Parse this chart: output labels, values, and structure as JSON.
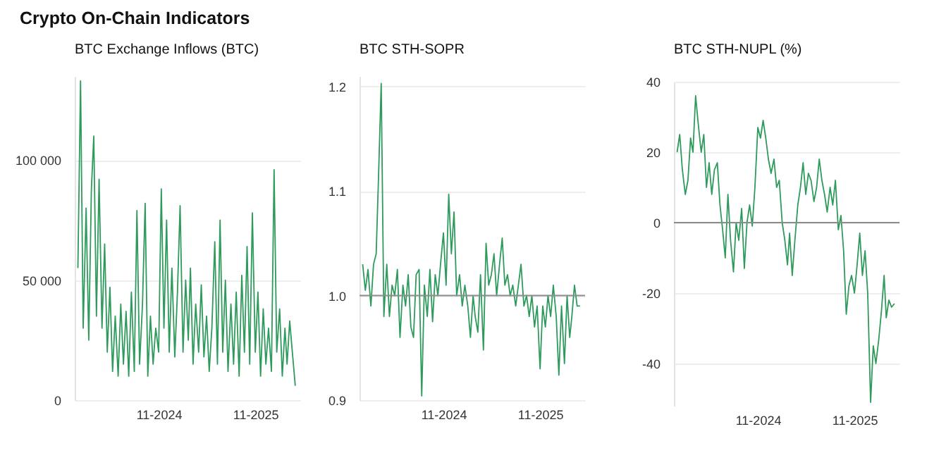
{
  "chart_data": [
    {
      "type": "other",
      "title": "Crypto On-Chain Indicators"
    },
    {
      "type": "line",
      "title": "BTC Exchange Inflows (BTC)",
      "grid": "y",
      "xlim": [
        "2023-12-20",
        "2026-04-20"
      ],
      "xticks": [
        {
          "value": "2024-11-01",
          "label": "11-2024"
        },
        {
          "value": "2025-11-01",
          "label": "11-2025"
        }
      ],
      "ylim": [
        0,
        135000
      ],
      "yticks": [
        {
          "value": 0,
          "label": "0"
        },
        {
          "value": 50000,
          "label": "50 000"
        },
        {
          "value": 100000,
          "label": "100 000"
        }
      ],
      "x": [
        "2024-01-01",
        "2024-01-11",
        "2024-01-21",
        "2024-02-01",
        "2024-02-11",
        "2024-02-21",
        "2024-03-01",
        "2024-03-11",
        "2024-03-21",
        "2024-04-01",
        "2024-04-11",
        "2024-04-21",
        "2024-05-01",
        "2024-05-11",
        "2024-05-21",
        "2024-06-01",
        "2024-06-11",
        "2024-06-21",
        "2024-07-01",
        "2024-07-11",
        "2024-07-21",
        "2024-08-01",
        "2024-08-11",
        "2024-08-21",
        "2024-09-01",
        "2024-09-11",
        "2024-09-21",
        "2024-10-01",
        "2024-10-11",
        "2024-10-21",
        "2024-11-01",
        "2024-11-11",
        "2024-11-21",
        "2024-12-01",
        "2024-12-11",
        "2024-12-21",
        "2025-01-01",
        "2025-01-11",
        "2025-01-21",
        "2025-02-01",
        "2025-02-11",
        "2025-02-21",
        "2025-03-01",
        "2025-03-11",
        "2025-03-21",
        "2025-04-01",
        "2025-04-11",
        "2025-04-21",
        "2025-05-01",
        "2025-05-11",
        "2025-05-21",
        "2025-06-01",
        "2025-06-11",
        "2025-06-21",
        "2025-07-01",
        "2025-07-11",
        "2025-07-21",
        "2025-08-01",
        "2025-08-11",
        "2025-08-21",
        "2025-09-01",
        "2025-09-11",
        "2025-09-21",
        "2025-10-01",
        "2025-10-11",
        "2025-10-21",
        "2025-11-01",
        "2025-11-11",
        "2025-11-21",
        "2025-12-01",
        "2025-12-11",
        "2025-12-21",
        "2026-01-01",
        "2026-01-11",
        "2026-01-21",
        "2026-02-01",
        "2026-02-11",
        "2026-02-21",
        "2026-03-01",
        "2026-03-11",
        "2026-03-21",
        "2026-04-01"
      ],
      "series": [
        {
          "color": "#2e9a5c",
          "values": [
            55000,
            133000,
            30000,
            80000,
            25000,
            88000,
            110000,
            35000,
            92000,
            30000,
            65000,
            20000,
            47000,
            12000,
            35000,
            10000,
            40000,
            15000,
            37000,
            10000,
            45000,
            12000,
            79000,
            15000,
            40000,
            82000,
            10000,
            35000,
            15000,
            30000,
            20000,
            88000,
            30000,
            75000,
            20000,
            55000,
            18000,
            45000,
            81000,
            20000,
            50000,
            25000,
            55000,
            15000,
            40000,
            20000,
            48000,
            18000,
            35000,
            12000,
            30000,
            66000,
            15000,
            75000,
            20000,
            50000,
            12000,
            40000,
            15000,
            45000,
            10000,
            52000,
            20000,
            64000,
            15000,
            78000,
            20000,
            45000,
            10000,
            38000,
            15000,
            30000,
            12000,
            96000,
            20000,
            38000,
            10000,
            30000,
            15000,
            33000,
            20000,
            6000
          ]
        }
      ]
    },
    {
      "type": "line",
      "title": "BTC STH-SOPR",
      "grid": "y",
      "xlim": [
        "2023-12-20",
        "2026-04-20"
      ],
      "xticks": [
        {
          "value": "2024-11-01",
          "label": "11-2024"
        },
        {
          "value": "2025-11-01",
          "label": "11-2025"
        }
      ],
      "ylim": [
        0.9,
        1.21
      ],
      "yticks": [
        {
          "value": 0.9,
          "label": "0.9"
        },
        {
          "value": 1,
          "label": "1.0"
        },
        {
          "value": 1.1,
          "label": "1.1"
        },
        {
          "value": 1.2,
          "label": "1.2"
        }
      ],
      "ref_lines": [
        {
          "axis": "y",
          "value": 1,
          "color": "#8c8c8c"
        }
      ],
      "x": [
        "2024-01-01",
        "2024-01-11",
        "2024-01-21",
        "2024-02-01",
        "2024-02-11",
        "2024-02-21",
        "2024-03-01",
        "2024-03-11",
        "2024-03-21",
        "2024-04-01",
        "2024-04-11",
        "2024-04-21",
        "2024-05-01",
        "2024-05-11",
        "2024-05-21",
        "2024-06-01",
        "2024-06-11",
        "2024-06-21",
        "2024-07-01",
        "2024-07-11",
        "2024-07-21",
        "2024-08-01",
        "2024-08-11",
        "2024-08-21",
        "2024-09-01",
        "2024-09-11",
        "2024-09-21",
        "2024-10-01",
        "2024-10-11",
        "2024-10-21",
        "2024-11-01",
        "2024-11-11",
        "2024-11-21",
        "2024-12-01",
        "2024-12-11",
        "2024-12-21",
        "2025-01-01",
        "2025-01-11",
        "2025-01-21",
        "2025-02-01",
        "2025-02-11",
        "2025-02-21",
        "2025-03-01",
        "2025-03-11",
        "2025-03-21",
        "2025-04-01",
        "2025-04-11",
        "2025-04-21",
        "2025-05-01",
        "2025-05-11",
        "2025-05-21",
        "2025-06-01",
        "2025-06-11",
        "2025-06-21",
        "2025-07-01",
        "2025-07-11",
        "2025-07-21",
        "2025-08-01",
        "2025-08-11",
        "2025-08-21",
        "2025-09-01",
        "2025-09-11",
        "2025-09-21",
        "2025-10-01",
        "2025-10-11",
        "2025-10-21",
        "2025-11-01",
        "2025-11-11",
        "2025-11-21",
        "2025-12-01",
        "2025-12-11",
        "2025-12-21",
        "2026-01-01",
        "2026-01-11",
        "2026-01-21",
        "2026-02-01",
        "2026-02-11",
        "2026-02-21",
        "2026-03-01",
        "2026-03-11",
        "2026-03-21",
        "2026-04-01"
      ],
      "series": [
        {
          "color": "#2e9a5c",
          "values": [
            1.03,
            1.005,
            1.025,
            0.99,
            1.03,
            1.04,
            1.115,
            1.203,
            0.98,
            1.03,
            0.98,
            1.01,
            1.0,
            1.025,
            0.96,
            1.01,
            0.99,
            1.02,
            0.97,
            0.96,
            1.02,
            1.025,
            0.904,
            1.01,
            0.98,
            1.025,
            0.975,
            1.02,
            1.0,
            1.03,
            1.06,
            1.01,
            1.097,
            1.04,
            1.08,
            1.0,
            1.02,
            0.99,
            1.01,
            0.99,
            0.96,
            1.0,
            0.98,
            0.965,
            1.02,
            0.948,
            1.05,
            1.01,
            1.02,
            1.04,
            1.0,
            1.03,
            1.055,
            1.01,
            1.02,
            1.0,
            1.01,
            0.99,
            1.01,
            1.03,
            0.99,
            1.0,
            0.98,
            1.0,
            0.97,
            0.99,
            0.93,
            0.99,
            0.97,
            1.0,
            0.98,
            1.01,
            0.98,
            0.924,
            0.99,
            0.935,
            1.0,
            0.96,
            0.98,
            1.01,
            0.99,
            0.99
          ]
        }
      ]
    },
    {
      "type": "line",
      "title": "BTC STH-NUPL (%)",
      "grid": "y",
      "xlim": [
        "2023-12-20",
        "2026-04-20"
      ],
      "xticks": [
        {
          "value": "2024-11-01",
          "label": "11-2024"
        },
        {
          "value": "2025-11-01",
          "label": "11-2025"
        }
      ],
      "ylim": [
        -52,
        40
      ],
      "yticks": [
        -40,
        -20,
        0,
        20,
        40
      ],
      "ref_lines": [
        {
          "axis": "y",
          "value": 0,
          "color": "#8c8c8c"
        }
      ],
      "x": [
        "2024-01-01",
        "2024-01-11",
        "2024-01-21",
        "2024-02-01",
        "2024-02-11",
        "2024-02-21",
        "2024-03-01",
        "2024-03-11",
        "2024-03-21",
        "2024-04-01",
        "2024-04-11",
        "2024-04-21",
        "2024-05-01",
        "2024-05-11",
        "2024-05-21",
        "2024-06-01",
        "2024-06-11",
        "2024-06-21",
        "2024-07-01",
        "2024-07-11",
        "2024-07-21",
        "2024-08-01",
        "2024-08-11",
        "2024-08-21",
        "2024-09-01",
        "2024-09-11",
        "2024-09-21",
        "2024-10-01",
        "2024-10-11",
        "2024-10-21",
        "2024-11-01",
        "2024-11-11",
        "2024-11-21",
        "2024-12-01",
        "2024-12-11",
        "2024-12-21",
        "2025-01-01",
        "2025-01-11",
        "2025-01-21",
        "2025-02-01",
        "2025-02-11",
        "2025-02-21",
        "2025-03-01",
        "2025-03-11",
        "2025-03-21",
        "2025-04-01",
        "2025-04-11",
        "2025-04-21",
        "2025-05-01",
        "2025-05-11",
        "2025-05-21",
        "2025-06-01",
        "2025-06-11",
        "2025-06-21",
        "2025-07-01",
        "2025-07-11",
        "2025-07-21",
        "2025-08-01",
        "2025-08-11",
        "2025-08-21",
        "2025-09-01",
        "2025-09-11",
        "2025-09-21",
        "2025-10-01",
        "2025-10-11",
        "2025-10-21",
        "2025-11-01",
        "2025-11-11",
        "2025-11-21",
        "2025-12-01",
        "2025-12-11",
        "2025-12-21",
        "2026-01-01",
        "2026-01-11",
        "2026-01-21",
        "2026-02-01",
        "2026-02-11",
        "2026-02-21",
        "2026-03-01",
        "2026-03-11",
        "2026-03-21",
        "2026-04-01"
      ],
      "series": [
        {
          "color": "#2e9a5c",
          "values": [
            20,
            25,
            15,
            8,
            12,
            24,
            20,
            36,
            28,
            20,
            25,
            10,
            17,
            8,
            15,
            17,
            5,
            -2,
            -10,
            8,
            -5,
            -14,
            0,
            -5,
            4,
            -13,
            0,
            5,
            -1,
            10,
            27,
            24,
            29,
            24,
            18,
            14,
            18,
            10,
            12,
            0,
            -5,
            -12,
            -3,
            -15,
            -5,
            5,
            10,
            17,
            8,
            14,
            12,
            6,
            10,
            18,
            12,
            8,
            3,
            10,
            5,
            12,
            -2,
            2,
            -8,
            -26,
            -18,
            -15,
            -20,
            -12,
            -3,
            -15,
            -8,
            -20,
            -51,
            -35,
            -40,
            -33,
            -25,
            -15,
            -27,
            -22,
            -24,
            -23
          ]
        }
      ]
    }
  ]
}
